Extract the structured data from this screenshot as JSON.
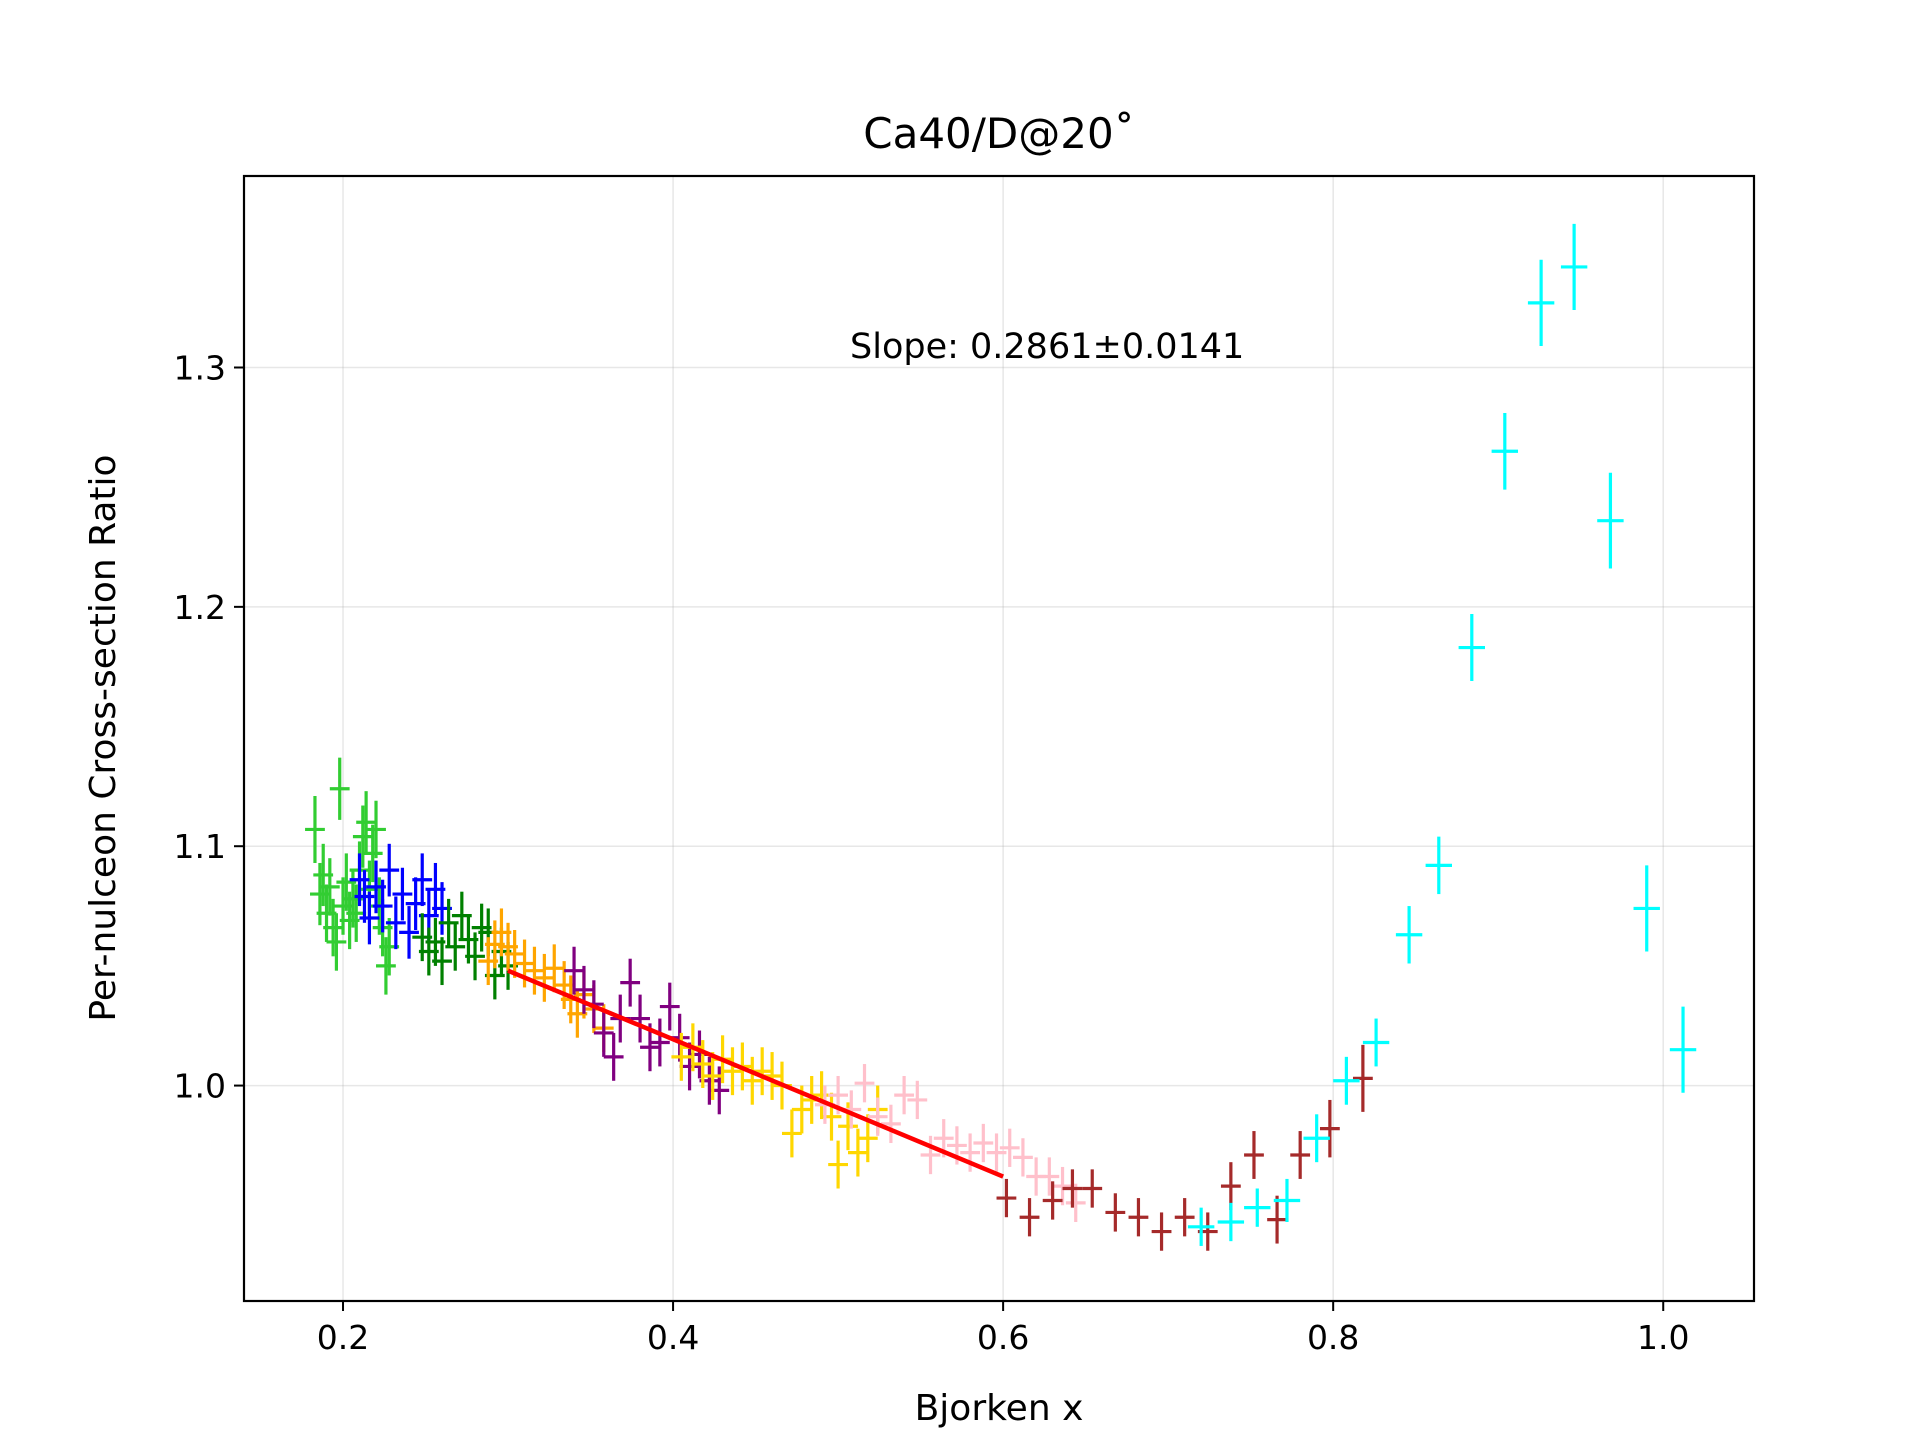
{
  "chart_data": {
    "type": "scatter",
    "title": "Ca40/D@20˚",
    "xlabel": "Bjorken x",
    "ylabel": "Per-nulceon Cross-section Ratio",
    "xlim": [
      0.14,
      1.055
    ],
    "ylim": [
      0.91,
      1.38
    ],
    "xticks": [
      {
        "value": 0.2,
        "label": "0.2"
      },
      {
        "value": 0.4,
        "label": "0.4"
      },
      {
        "value": 0.6,
        "label": "0.6"
      },
      {
        "value": 0.8,
        "label": "0.8"
      },
      {
        "value": 1.0,
        "label": "1.0"
      }
    ],
    "yticks": [
      {
        "value": 1.0,
        "label": "1.0"
      },
      {
        "value": 1.1,
        "label": "1.1"
      },
      {
        "value": 1.2,
        "label": "1.2"
      },
      {
        "value": 1.3,
        "label": "1.3"
      }
    ],
    "grid": true,
    "annotation": "Slope: 0.2861±0.0141",
    "fit_line": {
      "color": "#ff0000",
      "x": [
        0.3,
        0.6
      ],
      "y": [
        1.048,
        0.962
      ]
    },
    "series": [
      {
        "color": "#32cd32",
        "xerr": 0.006,
        "points": [
          [
            0.183,
            1.107,
            0.014
          ],
          [
            0.186,
            1.08,
            0.013
          ],
          [
            0.188,
            1.088,
            0.013
          ],
          [
            0.19,
            1.072,
            0.012
          ],
          [
            0.192,
            1.083,
            0.012
          ],
          [
            0.194,
            1.066,
            0.012
          ],
          [
            0.196,
            1.06,
            0.012
          ],
          [
            0.198,
            1.124,
            0.013
          ],
          [
            0.2,
            1.075,
            0.012
          ],
          [
            0.202,
            1.085,
            0.012
          ],
          [
            0.204,
            1.069,
            0.012
          ],
          [
            0.206,
            1.078,
            0.012
          ],
          [
            0.208,
            1.072,
            0.012
          ],
          [
            0.21,
            1.09,
            0.012
          ],
          [
            0.212,
            1.104,
            0.013
          ],
          [
            0.214,
            1.11,
            0.013
          ],
          [
            0.216,
            1.082,
            0.012
          ],
          [
            0.218,
            1.097,
            0.012
          ],
          [
            0.22,
            1.107,
            0.012
          ],
          [
            0.222,
            1.075,
            0.012
          ],
          [
            0.224,
            1.066,
            0.012
          ],
          [
            0.226,
            1.05,
            0.012
          ],
          [
            0.228,
            1.058,
            0.012
          ]
        ]
      },
      {
        "color": "#0000ff",
        "xerr": 0.006,
        "points": [
          [
            0.21,
            1.086,
            0.011
          ],
          [
            0.213,
            1.079,
            0.011
          ],
          [
            0.216,
            1.07,
            0.011
          ],
          [
            0.22,
            1.083,
            0.011
          ],
          [
            0.224,
            1.075,
            0.011
          ],
          [
            0.228,
            1.09,
            0.011
          ],
          [
            0.232,
            1.068,
            0.011
          ],
          [
            0.236,
            1.08,
            0.011
          ],
          [
            0.24,
            1.064,
            0.011
          ],
          [
            0.244,
            1.076,
            0.011
          ],
          [
            0.248,
            1.086,
            0.011
          ],
          [
            0.252,
            1.071,
            0.011
          ],
          [
            0.256,
            1.082,
            0.011
          ],
          [
            0.26,
            1.074,
            0.011
          ]
        ]
      },
      {
        "color": "#008000",
        "xerr": 0.006,
        "points": [
          [
            0.248,
            1.062,
            0.01
          ],
          [
            0.252,
            1.056,
            0.01
          ],
          [
            0.256,
            1.06,
            0.01
          ],
          [
            0.26,
            1.052,
            0.01
          ],
          [
            0.264,
            1.068,
            0.01
          ],
          [
            0.268,
            1.058,
            0.01
          ],
          [
            0.272,
            1.071,
            0.01
          ],
          [
            0.276,
            1.061,
            0.01
          ],
          [
            0.28,
            1.054,
            0.01
          ],
          [
            0.284,
            1.066,
            0.01
          ],
          [
            0.288,
            1.064,
            0.01
          ],
          [
            0.292,
            1.046,
            0.01
          ],
          [
            0.296,
            1.056,
            0.01
          ],
          [
            0.3,
            1.05,
            0.01
          ]
        ]
      },
      {
        "color": "#ffa500",
        "xerr": 0.006,
        "points": [
          [
            0.288,
            1.052,
            0.01
          ],
          [
            0.292,
            1.059,
            0.01
          ],
          [
            0.296,
            1.064,
            0.01
          ],
          [
            0.3,
            1.058,
            0.01
          ],
          [
            0.304,
            1.055,
            0.01
          ],
          [
            0.31,
            1.051,
            0.01
          ],
          [
            0.316,
            1.048,
            0.01
          ],
          [
            0.322,
            1.045,
            0.01
          ],
          [
            0.328,
            1.049,
            0.01
          ],
          [
            0.334,
            1.042,
            0.01
          ],
          [
            0.338,
            1.036,
            0.01
          ],
          [
            0.342,
            1.03,
            0.01
          ],
          [
            0.346,
            1.038,
            0.01
          ],
          [
            0.352,
            1.032,
            0.01
          ],
          [
            0.358,
            1.024,
            0.01
          ]
        ]
      },
      {
        "color": "#800080",
        "xerr": 0.006,
        "points": [
          [
            0.34,
            1.048,
            0.01
          ],
          [
            0.346,
            1.04,
            0.01
          ],
          [
            0.352,
            1.034,
            0.01
          ],
          [
            0.358,
            1.022,
            0.01
          ],
          [
            0.364,
            1.012,
            0.01
          ],
          [
            0.368,
            1.028,
            0.01
          ],
          [
            0.374,
            1.043,
            0.01
          ],
          [
            0.38,
            1.028,
            0.01
          ],
          [
            0.386,
            1.016,
            0.01
          ],
          [
            0.392,
            1.018,
            0.01
          ],
          [
            0.398,
            1.033,
            0.01
          ],
          [
            0.404,
            1.02,
            0.01
          ],
          [
            0.41,
            1.008,
            0.01
          ],
          [
            0.416,
            1.013,
            0.01
          ],
          [
            0.422,
            1.002,
            0.01
          ],
          [
            0.428,
            0.998,
            0.01
          ]
        ]
      },
      {
        "color": "#ffd700",
        "xerr": 0.006,
        "points": [
          [
            0.405,
            1.012,
            0.01
          ],
          [
            0.412,
            1.016,
            0.01
          ],
          [
            0.418,
            1.009,
            0.01
          ],
          [
            0.424,
            1.004,
            0.01
          ],
          [
            0.43,
            1.011,
            0.01
          ],
          [
            0.436,
            1.006,
            0.01
          ],
          [
            0.442,
            1.008,
            0.01
          ],
          [
            0.448,
            1.002,
            0.01
          ],
          [
            0.454,
            1.006,
            0.01
          ],
          [
            0.46,
            1.004,
            0.01
          ],
          [
            0.466,
            1.0,
            0.01
          ],
          [
            0.472,
            0.98,
            0.01
          ],
          [
            0.478,
            0.99,
            0.01
          ],
          [
            0.484,
            0.994,
            0.01
          ],
          [
            0.49,
            0.996,
            0.01
          ],
          [
            0.496,
            0.987,
            0.01
          ],
          [
            0.5,
            0.967,
            0.01
          ],
          [
            0.506,
            0.983,
            0.01
          ],
          [
            0.512,
            0.972,
            0.01
          ],
          [
            0.518,
            0.978,
            0.01
          ],
          [
            0.524,
            0.99,
            0.01
          ]
        ]
      },
      {
        "color": "#ffc0cb",
        "xerr": 0.006,
        "points": [
          [
            0.492,
            0.992,
            0.008
          ],
          [
            0.5,
            0.996,
            0.008
          ],
          [
            0.508,
            0.99,
            0.008
          ],
          [
            0.516,
            1.001,
            0.008
          ],
          [
            0.524,
            0.987,
            0.008
          ],
          [
            0.532,
            0.984,
            0.008
          ],
          [
            0.54,
            0.996,
            0.008
          ],
          [
            0.548,
            0.994,
            0.008
          ],
          [
            0.556,
            0.971,
            0.008
          ],
          [
            0.564,
            0.978,
            0.008
          ],
          [
            0.572,
            0.975,
            0.008
          ],
          [
            0.58,
            0.972,
            0.008
          ],
          [
            0.588,
            0.976,
            0.008
          ],
          [
            0.596,
            0.972,
            0.008
          ],
          [
            0.604,
            0.974,
            0.008
          ],
          [
            0.612,
            0.97,
            0.008
          ],
          [
            0.62,
            0.962,
            0.008
          ],
          [
            0.628,
            0.962,
            0.008
          ],
          [
            0.636,
            0.958,
            0.008
          ],
          [
            0.644,
            0.951,
            0.008
          ]
        ]
      },
      {
        "color": "#a52a2a",
        "xerr": 0.006,
        "points": [
          [
            0.602,
            0.953,
            0.008
          ],
          [
            0.616,
            0.945,
            0.008
          ],
          [
            0.63,
            0.952,
            0.008
          ],
          [
            0.642,
            0.957,
            0.008
          ],
          [
            0.654,
            0.957,
            0.008
          ],
          [
            0.668,
            0.947,
            0.008
          ],
          [
            0.682,
            0.945,
            0.008
          ],
          [
            0.696,
            0.939,
            0.008
          ],
          [
            0.71,
            0.945,
            0.008
          ],
          [
            0.724,
            0.939,
            0.008
          ],
          [
            0.738,
            0.958,
            0.01
          ],
          [
            0.752,
            0.971,
            0.01
          ],
          [
            0.766,
            0.944,
            0.01
          ],
          [
            0.78,
            0.971,
            0.01
          ],
          [
            0.798,
            0.982,
            0.012
          ],
          [
            0.818,
            1.003,
            0.014
          ]
        ]
      },
      {
        "color": "#00ffff",
        "xerr": 0.008,
        "points": [
          [
            0.72,
            0.941,
            0.008
          ],
          [
            0.738,
            0.943,
            0.008
          ],
          [
            0.754,
            0.949,
            0.008
          ],
          [
            0.772,
            0.952,
            0.009
          ],
          [
            0.79,
            0.978,
            0.01
          ],
          [
            0.808,
            1.002,
            0.01
          ],
          [
            0.826,
            1.018,
            0.01
          ],
          [
            0.846,
            1.063,
            0.012
          ],
          [
            0.864,
            1.092,
            0.012
          ],
          [
            0.884,
            1.183,
            0.014
          ],
          [
            0.904,
            1.265,
            0.016
          ],
          [
            0.926,
            1.327,
            0.018
          ],
          [
            0.946,
            1.342,
            0.018
          ],
          [
            0.968,
            1.236,
            0.02
          ],
          [
            0.99,
            1.074,
            0.018
          ],
          [
            1.012,
            1.015,
            0.018
          ]
        ]
      }
    ]
  }
}
